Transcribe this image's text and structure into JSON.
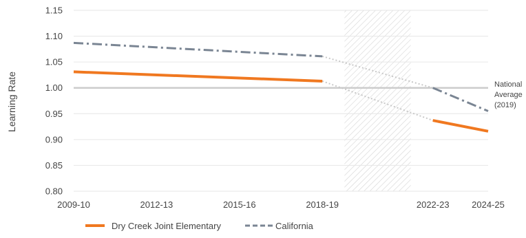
{
  "chart_data": {
    "type": "line",
    "ylabel": "Learning Rate",
    "ylim": [
      0.8,
      1.15
    ],
    "yticks": [
      "0.80",
      "0.85",
      "0.90",
      "0.95",
      "1.00",
      "1.05",
      "1.10",
      "1.15"
    ],
    "xticks": [
      "2009-10",
      "2012-13",
      "2015-16",
      "2018-19",
      "2022-23",
      "2024-25"
    ],
    "x_start_year": 2009,
    "x_end_year": 2024,
    "gap_region": {
      "from": 2019,
      "to": 2021
    },
    "reference_line": {
      "value": 1.0,
      "label_lines": [
        "National",
        "Average",
        "(2019)"
      ]
    },
    "series": [
      {
        "name": "Dry Creek Joint Elementary",
        "color": "#f07820",
        "style": "solid",
        "segments": [
          {
            "x": [
              2009,
              2018
            ],
            "y": [
              1.031,
              1.013
            ]
          },
          {
            "x": [
              2022,
              2024
            ],
            "y": [
              0.937,
              0.916
            ]
          }
        ],
        "connector": {
          "x": [
            2018,
            2022
          ],
          "y": [
            1.013,
            0.937
          ]
        }
      },
      {
        "name": "California",
        "color": "#7a8593",
        "style": "dashed",
        "segments": [
          {
            "x": [
              2009,
              2018
            ],
            "y": [
              1.087,
              1.061
            ]
          },
          {
            "x": [
              2022,
              2024
            ],
            "y": [
              1.0,
              0.955
            ]
          }
        ],
        "connector": {
          "x": [
            2018,
            2022
          ],
          "y": [
            1.061,
            1.0
          ]
        }
      }
    ],
    "connector_color": "#c8c8c8"
  }
}
